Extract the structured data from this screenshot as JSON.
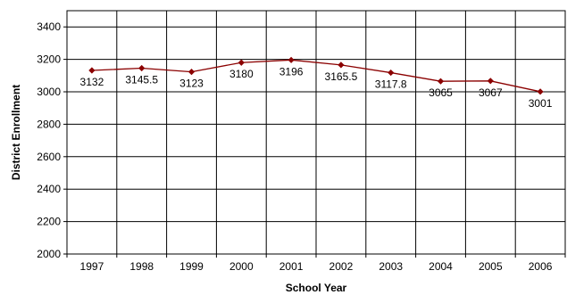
{
  "chart_data": {
    "type": "line",
    "xlabel": "School Year",
    "ylabel": "District Enrollment",
    "x": [
      "1997",
      "1998",
      "1999",
      "2000",
      "2001",
      "2002",
      "2003",
      "2004",
      "2005",
      "2006"
    ],
    "series": [
      {
        "values": [
          3132,
          3145.5,
          3123,
          3180,
          3196,
          3165.5,
          3117.8,
          3065,
          3067,
          3001
        ],
        "data_labels": [
          "3132",
          "3145.5",
          "3123",
          "3180",
          "3196",
          "3165.5",
          "3117.8",
          "3065",
          "3067",
          "3001"
        ],
        "color": "#8B0000"
      }
    ],
    "ylim": [
      2000,
      3500
    ],
    "yticks": [
      2000,
      2200,
      2400,
      2600,
      2800,
      3000,
      3200,
      3400
    ],
    "grid": true,
    "legend": "none"
  }
}
